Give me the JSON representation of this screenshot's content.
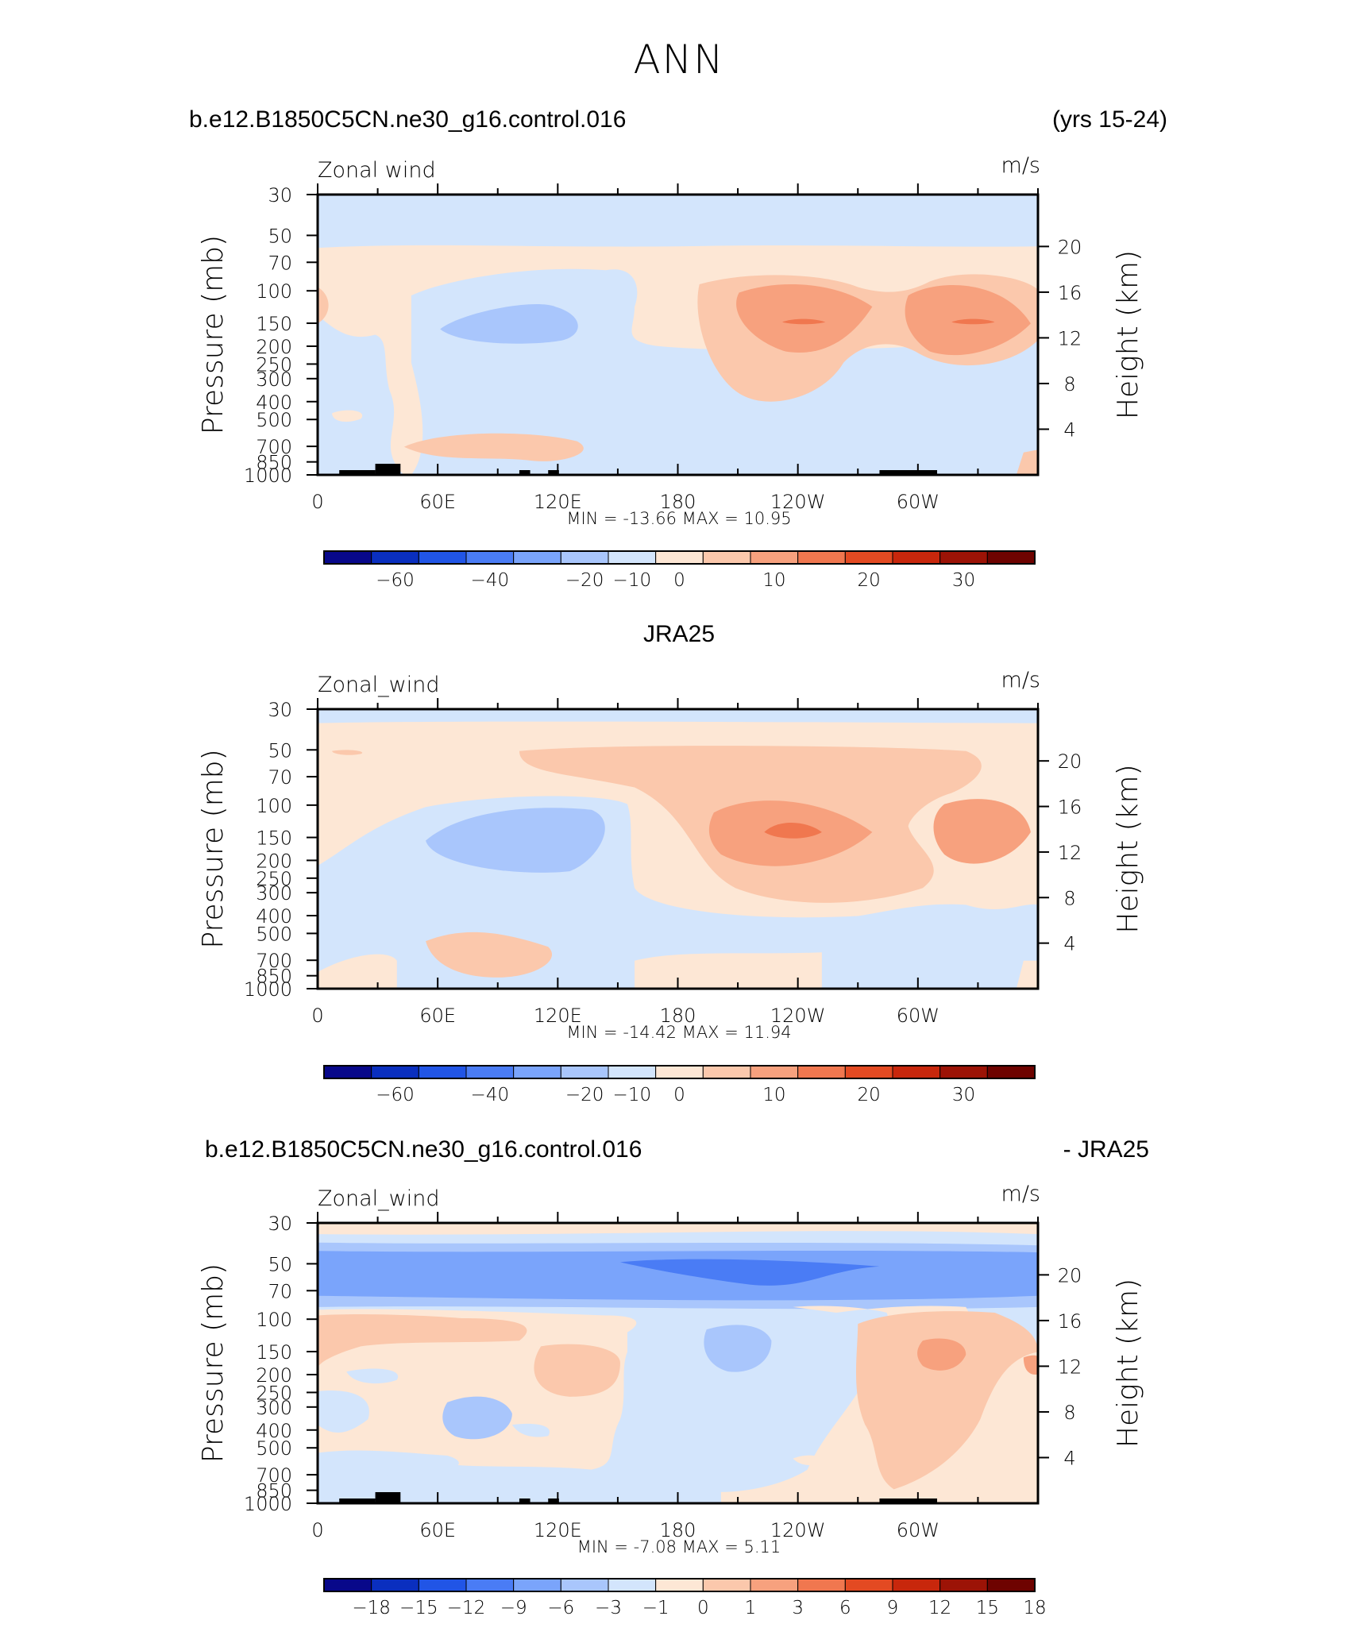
{
  "figure": {
    "main_title": "ANN"
  },
  "chart_data": [
    {
      "type": "heatmap",
      "kind": "pressure-longitude contour",
      "heading_left": "b.e12.B1850C5CN.ne30_g16.control.016",
      "heading_right": "(yrs 15-24)",
      "variable_label": "Zonal wind",
      "units_label": "m/s",
      "ylabel_left": "Pressure (mb)",
      "ylabel_right": "Height (km)",
      "x_ticks": [
        "0",
        "60E",
        "120E",
        "180",
        "120W",
        "60W"
      ],
      "x_tick_degrees": [
        0,
        60,
        120,
        180,
        240,
        300
      ],
      "xlim": [
        0,
        360
      ],
      "y_ticks": [
        "30",
        "50",
        "70",
        "100",
        "150",
        "200",
        "250",
        "300",
        "400",
        "500",
        "700",
        "850",
        "1000"
      ],
      "y_tick_mb": [
        30,
        50,
        70,
        100,
        150,
        200,
        250,
        300,
        400,
        500,
        700,
        850,
        1000
      ],
      "ylim_mb": [
        1000,
        30
      ],
      "height_ticks": [
        "20",
        "16",
        "12",
        "8",
        "4"
      ],
      "height_tick_km": [
        20,
        16,
        12,
        8,
        4
      ],
      "stats_text": "MIN = -13.66   MAX =   10.95",
      "min": -13.66,
      "max": 10.95,
      "colorbar_labels": [
        "-60",
        "-40",
        "-20",
        "-10",
        "0",
        "10",
        "20",
        "30"
      ],
      "field": "model"
    },
    {
      "type": "heatmap",
      "kind": "pressure-longitude contour",
      "heading_center": "JRA25",
      "variable_label": "Zonal_wind",
      "units_label": "m/s",
      "ylabel_left": "Pressure (mb)",
      "ylabel_right": "Height (km)",
      "x_ticks": [
        "0",
        "60E",
        "120E",
        "180",
        "120W",
        "60W"
      ],
      "x_tick_degrees": [
        0,
        60,
        120,
        180,
        240,
        300
      ],
      "xlim": [
        0,
        360
      ],
      "y_ticks": [
        "30",
        "50",
        "70",
        "100",
        "150",
        "200",
        "250",
        "300",
        "400",
        "500",
        "700",
        "850",
        "1000"
      ],
      "y_tick_mb": [
        30,
        50,
        70,
        100,
        150,
        200,
        250,
        300,
        400,
        500,
        700,
        850,
        1000
      ],
      "ylim_mb": [
        1000,
        30
      ],
      "height_ticks": [
        "20",
        "16",
        "12",
        "8",
        "4"
      ],
      "height_tick_km": [
        20,
        16,
        12,
        8,
        4
      ],
      "stats_text": "MIN = -14.42   MAX =   11.94",
      "min": -14.42,
      "max": 11.94,
      "colorbar_labels": [
        "-60",
        "-40",
        "-20",
        "-10",
        "0",
        "10",
        "20",
        "30"
      ],
      "field": "obs"
    },
    {
      "type": "heatmap",
      "kind": "pressure-longitude contour (difference)",
      "heading_left": "b.e12.B1850C5CN.ne30_g16.control.016",
      "heading_right": "- JRA25",
      "variable_label": "Zonal_wind",
      "units_label": "m/s",
      "ylabel_left": "Pressure (mb)",
      "ylabel_right": "Height (km)",
      "x_ticks": [
        "0",
        "60E",
        "120E",
        "180",
        "120W",
        "60W"
      ],
      "x_tick_degrees": [
        0,
        60,
        120,
        180,
        240,
        300
      ],
      "xlim": [
        0,
        360
      ],
      "y_ticks": [
        "30",
        "50",
        "70",
        "100",
        "150",
        "200",
        "250",
        "300",
        "400",
        "500",
        "700",
        "850",
        "1000"
      ],
      "y_tick_mb": [
        30,
        50,
        70,
        100,
        150,
        200,
        250,
        300,
        400,
        500,
        700,
        850,
        1000
      ],
      "ylim_mb": [
        1000,
        30
      ],
      "height_ticks": [
        "20",
        "16",
        "12",
        "8",
        "4"
      ],
      "height_tick_km": [
        20,
        16,
        12,
        8,
        4
      ],
      "stats_text": "MIN =   -7.08   MAX =    5.11",
      "min": -7.08,
      "max": 5.11,
      "colorbar_labels": [
        "-18",
        "-15",
        "-12",
        "-9",
        "-6",
        "-3",
        "-1",
        "0",
        "1",
        "3",
        "6",
        "9",
        "12",
        "15",
        "18"
      ],
      "field": "diff"
    }
  ],
  "colorbar": {
    "colors": [
      "#08088a",
      "#0a2fbf",
      "#2155e6",
      "#4a7cf5",
      "#7aa4fb",
      "#a9c6fc",
      "#d3e5fc",
      "#fde7d5",
      "#fbc8ac",
      "#f7a17e",
      "#f0774f",
      "#e34a22",
      "#c8270c",
      "#9c1306",
      "#6e0300"
    ]
  }
}
